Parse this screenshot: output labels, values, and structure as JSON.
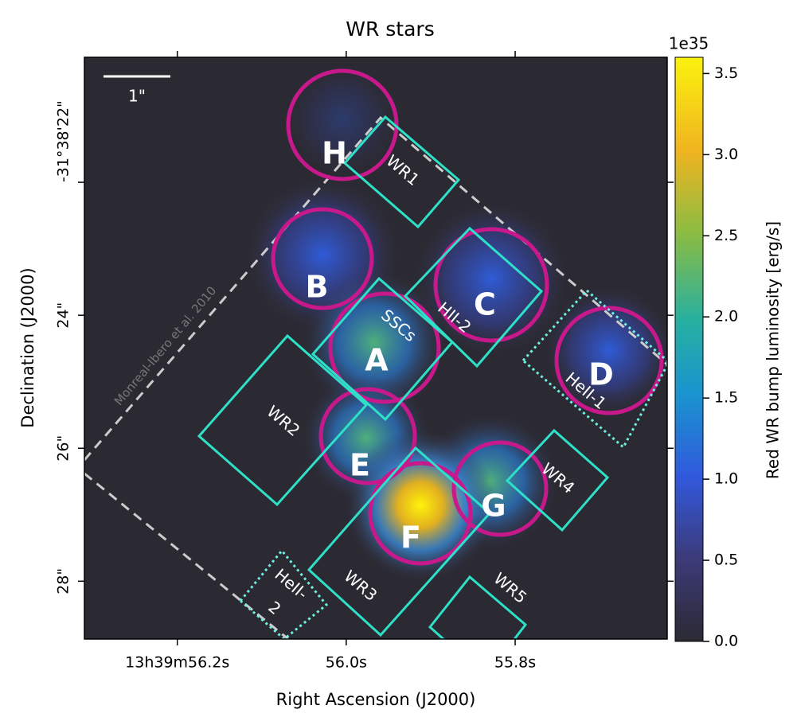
{
  "chart_data": {
    "type": "image",
    "title": "WR stars",
    "x_label": "Right Ascension (J2000)",
    "y_label": "Declination (J2000)",
    "xlim": [
      56.31,
      55.62
    ],
    "xticks": [
      {
        "value": 56.2,
        "label": "13h39m56.2s"
      },
      {
        "value": 56.0,
        "label": "56.0s"
      },
      {
        "value": 55.8,
        "label": "55.8s"
      }
    ],
    "ylim": [
      28.87,
      20.12
    ],
    "yticks": [
      {
        "value": 22,
        "label": "-31°38'22\""
      },
      {
        "value": 24,
        "label": "24\""
      },
      {
        "value": 26,
        "label": "26\""
      },
      {
        "value": 28,
        "label": "28\""
      }
    ],
    "colorbar": {
      "label": "Red WR bump luminosity [erg/s]",
      "multiplier": "1e35",
      "lim": [
        0,
        3.6
      ],
      "ticks": [
        {
          "value": 0,
          "label": "0.0"
        },
        {
          "value": 0.5,
          "label": "0.5"
        },
        {
          "value": 1,
          "label": "1.0"
        },
        {
          "value": 1.5,
          "label": "1.5"
        },
        {
          "value": 2,
          "label": "2.0"
        },
        {
          "value": 2.5,
          "label": "2.5"
        },
        {
          "value": 3,
          "label": "3.0"
        },
        {
          "value": 3.5,
          "label": "3.5"
        }
      ]
    },
    "scale_bar": "1\"",
    "footprint_label": "Monreal-Ibero et al. 2010",
    "circles": [
      "H",
      "B",
      "A",
      "C",
      "D",
      "E",
      "F",
      "G"
    ],
    "boxes": [
      "WR1",
      "SSCs",
      "HII-2",
      "HeII-1",
      "WR2",
      "WR4",
      "WR3",
      "WR5",
      [
        "HeII-",
        "2"
      ]
    ]
  }
}
